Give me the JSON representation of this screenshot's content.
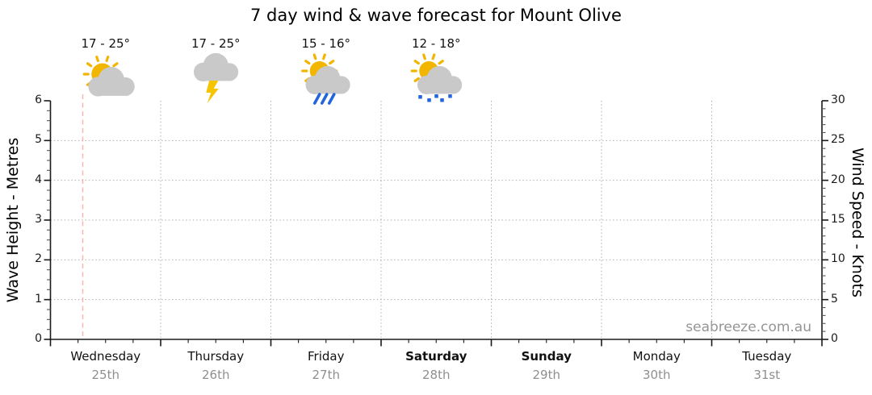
{
  "page": {
    "watermark": "seabreeze.com.au"
  },
  "chart_data": {
    "type": "line",
    "title": "7 day wind & wave forecast for Mount Olive",
    "legend": "none",
    "series": [],
    "left_axis": {
      "label": "Wave Height - Metres",
      "min": 0,
      "max": 6,
      "major_step": 1,
      "minor_step": 0.25,
      "ticks": [
        "0",
        "1",
        "2",
        "3",
        "4",
        "5",
        "6"
      ]
    },
    "right_axis": {
      "label": "Wind Speed - Knots",
      "min": 0,
      "max": 30,
      "major_step": 5,
      "minor_step": 1,
      "ticks": [
        "0",
        "5",
        "10",
        "15",
        "20",
        "25",
        "30"
      ]
    },
    "grid": {
      "style": "dotted",
      "horizontal_at_metres": [
        1,
        2,
        3,
        4,
        5
      ],
      "vertical_at_day_boundaries": true
    },
    "now_marker": {
      "day": 0,
      "fraction_of_day": 0.293,
      "style": "dashed"
    },
    "days": [
      {
        "name": "Wednesday",
        "date": "25th",
        "weekend": false,
        "temp_range": "17 - 25°",
        "icon": "sun-cloud"
      },
      {
        "name": "Thursday",
        "date": "26th",
        "weekend": false,
        "temp_range": "17 - 25°",
        "icon": "storm-cloud-lightning"
      },
      {
        "name": "Friday",
        "date": "27th",
        "weekend": false,
        "temp_range": "15 - 16°",
        "icon": "sun-cloud-rain"
      },
      {
        "name": "Saturday",
        "date": "28th",
        "weekend": true,
        "temp_range": "12 - 18°",
        "icon": "sun-cloud-drizzle"
      },
      {
        "name": "Sunday",
        "date": "29th",
        "weekend": true,
        "temp_range": null,
        "icon": null
      },
      {
        "name": "Monday",
        "date": "30th",
        "weekend": false,
        "temp_range": null,
        "icon": null
      },
      {
        "name": "Tuesday",
        "date": "31st",
        "weekend": false,
        "temp_range": null,
        "icon": null
      }
    ],
    "colors": {
      "sun": "#F2B500",
      "cloud": "#C9C9C9",
      "lightning": "#F6C500",
      "rain": "#2265DC",
      "grid": "#AFAFAF",
      "axis": "#1a1a1a",
      "minor_tick": "#555555",
      "now_marker": "#FFB0B0",
      "date_text": "#8f8f8f",
      "watermark": "#959595"
    }
  }
}
